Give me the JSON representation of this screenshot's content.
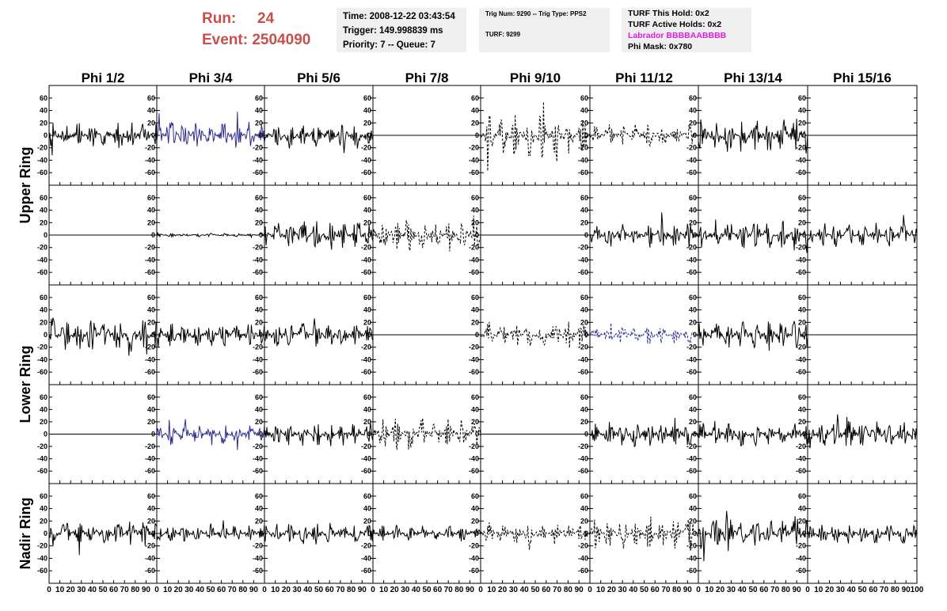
{
  "header": {
    "run_label": "Run:",
    "run_value": "24",
    "event_label": "Event:",
    "event_value": "2504090",
    "time_line": "Time: 2008-12-22 03:43:54",
    "trigger_line": "Trigger: 149.998839 ms",
    "priority_line": "Priority: 7 -- Queue: 7",
    "trig_line": "Trig Num: 9290 -- Trig Type: PPS2",
    "turf_line": "TURF: 9299",
    "turf_hold_line": "TURF This Hold: 0x2",
    "turf_active_line": "TURF Active Holds: 0x2",
    "labrador_line": "Labrador BBBBAABBBB",
    "phi_mask_line": "Phi Mask: 0x780"
  },
  "chart_data": {
    "type": "line",
    "columns": [
      "Phi 1/2",
      "Phi 3/4",
      "Phi 5/6",
      "Phi 7/8",
      "Phi 9/10",
      "Phi 11/12",
      "Phi 13/14",
      "Phi 15/16"
    ],
    "rows": [
      "Upper Ring",
      "Upper Ring",
      "Lower Ring",
      "Lower Ring",
      "Nadir Ring"
    ],
    "row_labels": [
      "Upper Ring",
      "Lower Ring",
      "Nadir Ring"
    ],
    "xlim": [
      0,
      100
    ],
    "ylim": [
      -70,
      70
    ],
    "x_ticks": [
      0,
      10,
      20,
      30,
      40,
      50,
      60,
      70,
      80,
      90,
      100
    ],
    "x_tick_labels": [
      "0",
      "10",
      "20",
      "30",
      "40",
      "50",
      "60",
      "70",
      "80",
      "90",
      "100"
    ],
    "y_ticks": [
      -60,
      -40,
      -20,
      0,
      20,
      40,
      60
    ],
    "y_tick_labels": [
      "-60",
      "-40",
      "-20",
      "0",
      "20",
      "40",
      "60"
    ],
    "colors": {
      "normal": "#000000",
      "highlight": "#2c2c8e",
      "info_bg": "#efefef",
      "run_text": "#c9504a",
      "labrador_text": "#e01ee0"
    },
    "panels": [
      [
        {
          "amp": 22,
          "style": "solid",
          "color": "normal"
        },
        {
          "amp": 24,
          "style": "solid",
          "color": "highlight"
        },
        {
          "amp": 20,
          "style": "solid",
          "color": "normal"
        },
        {
          "amp": 0,
          "style": "flat",
          "color": "normal"
        },
        {
          "amp": 36,
          "style": "dashed",
          "color": "normal"
        },
        {
          "amp": 18,
          "style": "dashed",
          "color": "normal"
        },
        {
          "amp": 30,
          "style": "solid",
          "color": "normal"
        },
        {
          "amp": 0,
          "style": "flat",
          "color": "normal"
        }
      ],
      [
        {
          "amp": 0,
          "style": "flat",
          "color": "normal"
        },
        {
          "amp": 3,
          "style": "solid",
          "color": "normal"
        },
        {
          "amp": 24,
          "style": "solid",
          "color": "normal"
        },
        {
          "amp": 28,
          "style": "dashed",
          "color": "normal"
        },
        {
          "amp": 0,
          "style": "flat",
          "color": "normal"
        },
        {
          "amp": 22,
          "style": "solid",
          "color": "normal"
        },
        {
          "amp": 25,
          "style": "solid",
          "color": "normal"
        },
        {
          "amp": 20,
          "style": "solid",
          "color": "normal"
        }
      ],
      [
        {
          "amp": 28,
          "style": "solid",
          "color": "normal"
        },
        {
          "amp": 20,
          "style": "solid",
          "color": "normal"
        },
        {
          "amp": 20,
          "style": "solid",
          "color": "normal"
        },
        {
          "amp": 0,
          "style": "flat",
          "color": "normal"
        },
        {
          "amp": 22,
          "style": "dashed",
          "color": "normal"
        },
        {
          "amp": 16,
          "style": "dashed",
          "color": "highlight"
        },
        {
          "amp": 26,
          "style": "solid",
          "color": "normal"
        },
        {
          "amp": 0,
          "style": "flat",
          "color": "normal"
        }
      ],
      [
        {
          "amp": 0,
          "style": "flat",
          "color": "normal"
        },
        {
          "amp": 18,
          "style": "solid",
          "color": "highlight"
        },
        {
          "amp": 20,
          "style": "solid",
          "color": "normal"
        },
        {
          "amp": 26,
          "style": "dashed",
          "color": "normal"
        },
        {
          "amp": 0,
          "style": "flat",
          "color": "normal"
        },
        {
          "amp": 22,
          "style": "solid",
          "color": "normal"
        },
        {
          "amp": 22,
          "style": "solid",
          "color": "normal"
        },
        {
          "amp": 24,
          "style": "solid",
          "color": "normal"
        }
      ],
      [
        {
          "amp": 22,
          "style": "solid",
          "color": "normal"
        },
        {
          "amp": 14,
          "style": "solid",
          "color": "normal"
        },
        {
          "amp": 18,
          "style": "solid",
          "color": "normal"
        },
        {
          "amp": 14,
          "style": "solid",
          "color": "normal"
        },
        {
          "amp": 18,
          "style": "dashed",
          "color": "normal"
        },
        {
          "amp": 26,
          "style": "dashed",
          "color": "normal"
        },
        {
          "amp": 30,
          "style": "solid",
          "color": "normal"
        },
        {
          "amp": 18,
          "style": "solid",
          "color": "normal"
        }
      ]
    ]
  }
}
